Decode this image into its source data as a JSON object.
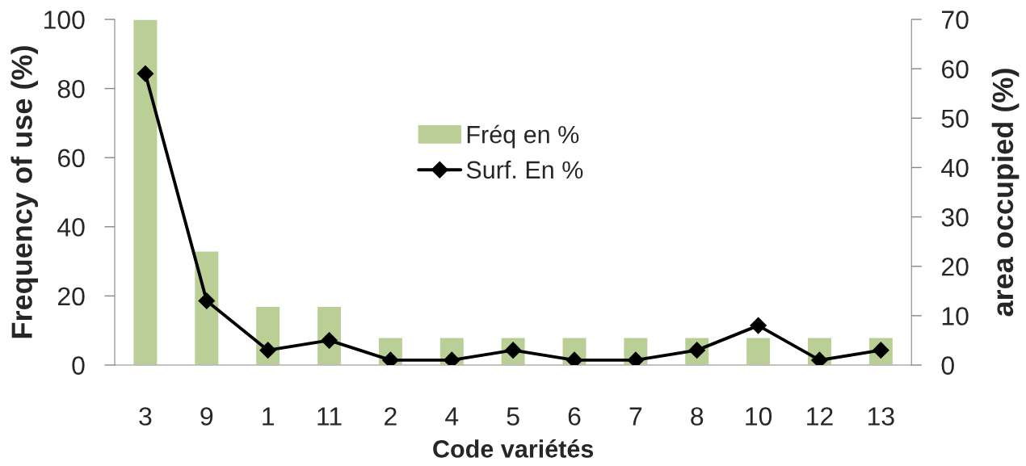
{
  "chart_data": {
    "type": "bar",
    "xlabel": "Code variétés",
    "ylabel": "Frequency of use (%)",
    "y2label": "area occupied (%)",
    "categories": [
      "3",
      "9",
      "1",
      "11",
      "2",
      "4",
      "5",
      "6",
      "7",
      "8",
      "10",
      "12",
      "13"
    ],
    "series": [
      {
        "name": "Fréq en %",
        "color": "#b9cf96",
        "values": [
          100,
          33,
          17,
          17,
          8,
          8,
          8,
          8,
          8,
          8,
          8,
          8,
          8
        ]
      },
      {
        "name": "Surf. En %",
        "type": "line",
        "axis": "y2",
        "color": "#000000",
        "values": [
          59,
          13,
          3,
          5,
          1,
          1,
          3,
          1,
          1,
          3,
          8,
          1,
          3
        ]
      }
    ],
    "marker": "diamond",
    "line_style": "solid",
    "ylim": [
      0,
      100
    ],
    "yticks": [
      0,
      20,
      40,
      60,
      80,
      100
    ],
    "y2lim": [
      0,
      70
    ],
    "y2ticks": [
      0,
      10,
      20,
      30,
      40,
      50,
      60,
      70
    ],
    "legend": "center",
    "grid": false
  }
}
